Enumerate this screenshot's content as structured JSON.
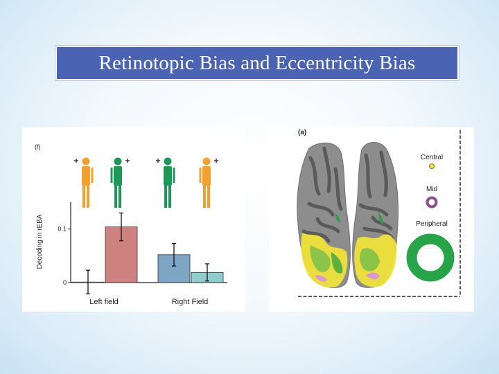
{
  "slide": {
    "title": "Retinotopic Bias and Eccentricity Bias"
  },
  "figure_left": {
    "panel_label": "(f)",
    "chart_data": {
      "type": "bar",
      "title": "",
      "ylabel": "Decoding in rEBA",
      "xlabel": "",
      "ylim": [
        0,
        0.15
      ],
      "yticks": [
        "0",
        "0.1"
      ],
      "categories": [
        "Left field",
        "Right Field"
      ],
      "series": [
        {
          "values": [
            0.001,
            0.104
          ],
          "errors": [
            0.022,
            0.026
          ],
          "colors": [
            "#cd8280",
            "#cd8280"
          ]
        },
        {
          "values": [
            0.052,
            0.019
          ],
          "errors": [
            0.021,
            0.016
          ],
          "colors": [
            "#7fa5c4",
            "#8ecccd"
          ]
        }
      ],
      "bar_colors": [
        "#f2f2f2",
        "#cd8280",
        "#7fa5c4",
        "#8ecccd"
      ],
      "bar_values": [
        0.001,
        0.104,
        0.052,
        0.019
      ],
      "bar_errors": [
        0.022,
        0.026,
        0.021,
        0.016
      ],
      "figure_colors": [
        "#f2a12c",
        "#1b9a57",
        "#1b9a57",
        "#f2a12c"
      ]
    }
  },
  "figure_right": {
    "panel_label": "(a)",
    "legend": {
      "central_label": "Central",
      "mid_label": "Mid",
      "peripheral_label": "Peripheral"
    },
    "colors": {
      "central": "#efe23a",
      "mid": "#c07fc1",
      "peripheral": "#26a447",
      "cortex": "#8d8d8d"
    }
  }
}
